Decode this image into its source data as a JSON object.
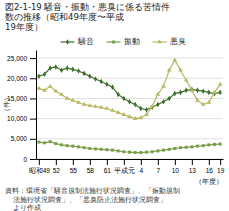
{
  "chart_data": {
    "type": "line",
    "title": "図2-1-19  騒音・振動・悪臭に係る苦情件\n数の推移（昭和49年度〜平成\n19年度）",
    "ylabel": "（件）",
    "xlabel": "（年度）",
    "annotations": [
      "資料：環境省「騒音規制法施行状況調査」、「振動規制\n    法施行状況調査」、「悪臭防止法施行状況調査」\n    より作成"
    ],
    "categories": [
      "昭和49",
      null,
      null,
      "52",
      null,
      null,
      "55",
      null,
      null,
      "58",
      null,
      null,
      "61",
      null,
      null,
      "平成元",
      null,
      null,
      "4",
      null,
      null,
      "7",
      null,
      null,
      "10",
      null,
      null,
      "13",
      null,
      null,
      "16",
      null,
      "19"
    ],
    "ylim": [
      0,
      27000
    ],
    "yticks": [
      0,
      {
        "value": 5000,
        "label": "5,000"
      },
      {
        "value": 10000,
        "label": "10,000"
      },
      {
        "value": 15000,
        "label": "15,000"
      },
      {
        "value": 20000,
        "label": "20,000"
      },
      {
        "value": 25000,
        "label": "25,000"
      }
    ],
    "grid": true,
    "legend": "top",
    "series": [
      {
        "name": "騒音",
        "color": "#3d6e2a",
        "marker": "diamond",
        "values": [
          20500,
          21000,
          22500,
          22800,
          22000,
          22500,
          22200,
          21800,
          21200,
          20500,
          19800,
          19200,
          18500,
          17800,
          16000,
          15000,
          14200,
          13500,
          12500,
          12200,
          12800,
          13500,
          14200,
          15000,
          16200,
          16500,
          17000,
          17200,
          17000,
          16800,
          16500,
          16200,
          16500
        ]
      },
      {
        "name": "振動",
        "color": "#7a9e4a",
        "marker": "square",
        "values": [
          4200,
          4000,
          4300,
          3800,
          3500,
          3300,
          3200,
          3000,
          2800,
          2600,
          2500,
          2400,
          2300,
          2200,
          2000,
          1800,
          1700,
          1600,
          1600,
          1700,
          1800,
          2000,
          2200,
          2400,
          2600,
          2800,
          2900,
          3000,
          3200,
          3300,
          3500,
          3600,
          3700
        ]
      },
      {
        "name": "悪臭",
        "color": "#b8b860",
        "marker": "triangle",
        "values": [
          17500,
          17000,
          18000,
          16800,
          16000,
          15000,
          14500,
          14000,
          13500,
          13200,
          13000,
          12800,
          12500,
          12000,
          11500,
          11000,
          10500,
          10000,
          10200,
          11000,
          13000,
          16000,
          18000,
          22000,
          24500,
          22000,
          19500,
          17000,
          14500,
          13500,
          14000,
          16500,
          18500
        ]
      }
    ]
  }
}
